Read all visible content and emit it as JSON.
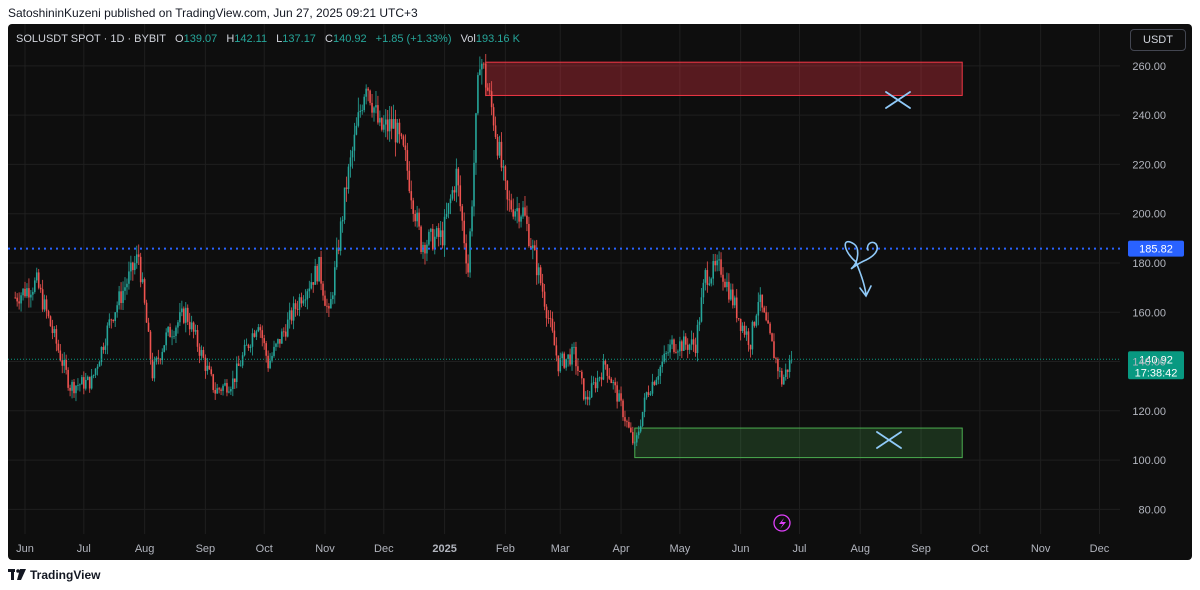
{
  "header": {
    "publisher_line": "SatoshininKuzeni published on TradingView.com, Jun 27, 2025 09:21 UTC+3"
  },
  "legend": {
    "symbol": "SOLUSDT SPOT · 1D · BYBIT",
    "open_label": "O",
    "open": "139.07",
    "high_label": "H",
    "high": "142.11",
    "low_label": "L",
    "low": "137.17",
    "close_label": "C",
    "close": "140.92",
    "change": "+1.85 (+1.33%)",
    "vol_label": "Vol",
    "volume": "193.16 K"
  },
  "currency_button": "USDT",
  "footer": {
    "brand": "TradingView"
  },
  "colors": {
    "up": "#26a69a",
    "down": "#ef5350",
    "resistance": "#f23645",
    "support": "#4caf50",
    "level_line": "#2962ff",
    "price_badge": "#089981",
    "drawing": "#90caf9",
    "flash": "#e040fb"
  },
  "chart_data": {
    "type": "line",
    "title": "SOLUSDT SPOT · 1D · BYBIT",
    "ylim": [
      70,
      277
    ],
    "y_ticks": [
      "80.00",
      "100.00",
      "120.00",
      "140.00",
      "160.00",
      "180.00",
      "200.00",
      "220.00",
      "240.00",
      "260.00"
    ],
    "x_ticks": [
      "Jun",
      "Jul",
      "Aug",
      "Sep",
      "Oct",
      "Nov",
      "Dec",
      "2025",
      "Feb",
      "Mar",
      "Apr",
      "May",
      "Jun",
      "Jul",
      "Aug",
      "Sep",
      "Oct",
      "Nov",
      "Dec"
    ],
    "x_tick_dates": [
      "2024-06-01",
      "2024-07-01",
      "2024-08-01",
      "2024-09-01",
      "2024-10-01",
      "2024-11-01",
      "2024-12-01",
      "2025-01-01",
      "2025-02-01",
      "2025-03-01",
      "2025-04-01",
      "2025-05-01",
      "2025-06-01",
      "2025-07-01",
      "2025-08-01",
      "2025-09-01",
      "2025-10-01",
      "2025-11-01",
      "2025-12-01"
    ],
    "price_path": [
      [
        "2024-05-27",
        166
      ],
      [
        "2024-06-07",
        172
      ],
      [
        "2024-06-24",
        130
      ],
      [
        "2024-07-05",
        132
      ],
      [
        "2024-07-15",
        158
      ],
      [
        "2024-07-29",
        183
      ],
      [
        "2024-08-05",
        135
      ],
      [
        "2024-08-12",
        150
      ],
      [
        "2024-08-22",
        160
      ],
      [
        "2024-09-06",
        128
      ],
      [
        "2024-09-15",
        132
      ],
      [
        "2024-09-28",
        157
      ],
      [
        "2024-10-03",
        139
      ],
      [
        "2024-10-20",
        167
      ],
      [
        "2024-10-29",
        178
      ],
      [
        "2024-11-03",
        158
      ],
      [
        "2024-11-12",
        212
      ],
      [
        "2024-11-22",
        255
      ],
      [
        "2024-11-29",
        234
      ],
      [
        "2024-12-06",
        236
      ],
      [
        "2024-12-12",
        222
      ],
      [
        "2024-12-20",
        188
      ],
      [
        "2024-12-31",
        191
      ],
      [
        "2025-01-07",
        216
      ],
      [
        "2025-01-13",
        177
      ],
      [
        "2025-01-19",
        265
      ],
      [
        "2025-01-26",
        239
      ],
      [
        "2025-02-02",
        204
      ],
      [
        "2025-02-10",
        201
      ],
      [
        "2025-02-20",
        169
      ],
      [
        "2025-02-28",
        139
      ],
      [
        "2025-03-08",
        143
      ],
      [
        "2025-03-14",
        124
      ],
      [
        "2025-03-24",
        139
      ],
      [
        "2025-04-01",
        122
      ],
      [
        "2025-04-08",
        105
      ],
      [
        "2025-04-14",
        127
      ],
      [
        "2025-04-27",
        147
      ],
      [
        "2025-05-09",
        147
      ],
      [
        "2025-05-14",
        175
      ],
      [
        "2025-05-22",
        178
      ],
      [
        "2025-06-01",
        156
      ],
      [
        "2025-06-06",
        148
      ],
      [
        "2025-06-10",
        166
      ],
      [
        "2025-06-22",
        132
      ],
      [
        "2025-06-27",
        141
      ]
    ],
    "horizontal_level": {
      "label": "185.82",
      "value": 185.82
    },
    "last_price": {
      "price": "140.92",
      "countdown": "17:38:42",
      "value": 140.92
    },
    "resistance_zone": {
      "from": "2025-01-22",
      "to": "2025-09-22",
      "low": 248,
      "high": 261.5
    },
    "support_zone": {
      "from": "2025-04-08",
      "to": "2025-09-22",
      "low": 101,
      "high": 113
    },
    "grid": true
  }
}
